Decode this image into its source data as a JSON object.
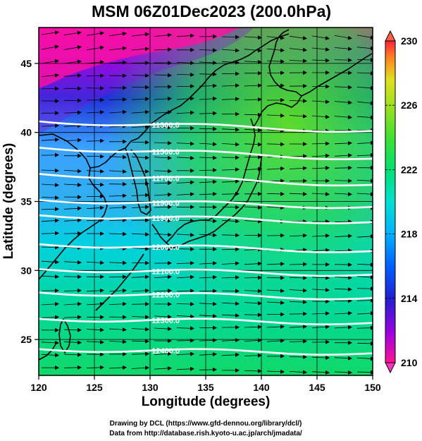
{
  "title": "MSM 06Z01Dec2023 (200.0hPa)",
  "xlabel": "Longitude (degrees)",
  "ylabel": "Latitude  (degrees)",
  "footer": {
    "line1": "Drawing by DCL (https://www.gfd-dennou.org/library/dcl/)",
    "line2": "Data from http://database.rish.kyoto-u.ac.jp/arch/jmadata/"
  },
  "map": {
    "lon_range": [
      120,
      150
    ],
    "lat_range": [
      22.4,
      47.6
    ],
    "x_ticks": [
      {
        "value": 120,
        "label": "120"
      },
      {
        "value": 125,
        "label": "125"
      },
      {
        "value": 130,
        "label": "130"
      },
      {
        "value": 135,
        "label": "135"
      },
      {
        "value": 140,
        "label": "140"
      },
      {
        "value": 145,
        "label": "145"
      },
      {
        "value": 150,
        "label": "150"
      }
    ],
    "y_ticks": [
      {
        "value": 25,
        "label": "25"
      },
      {
        "value": 30,
        "label": "30"
      },
      {
        "value": 35,
        "label": "35"
      },
      {
        "value": 40,
        "label": "40"
      },
      {
        "value": 45,
        "label": "45"
      }
    ],
    "contours": [
      {
        "label": "11300.0",
        "lat_west": 40.8,
        "lat_east": 40.1
      },
      {
        "label": "11500.0",
        "lat_west": 38.9,
        "lat_east": 38.1
      },
      {
        "label": "11700.0",
        "lat_west": 37.0,
        "lat_east": 36.2
      },
      {
        "label": "11900.0",
        "lat_west": 35.1,
        "lat_east": 34.6
      },
      {
        "label": "11900.0",
        "lat_west": 34.0,
        "lat_east": 33.5
      },
      {
        "label": "12000.0",
        "lat_west": 31.9,
        "lat_east": 31.4
      },
      {
        "label": "12100.0",
        "lat_west": 30.1,
        "lat_east": 29.7
      },
      {
        "label": "12200.0",
        "lat_west": 28.4,
        "lat_east": 28.0
      },
      {
        "label": "12300.0",
        "lat_west": 26.5,
        "lat_east": 26.2
      },
      {
        "label": "12400.0",
        "lat_west": 24.3,
        "lat_east": 24.0
      }
    ]
  },
  "colorbar": {
    "min": 210,
    "max": 230,
    "ticks": [
      {
        "value": 210,
        "label": "210"
      },
      {
        "value": 214,
        "label": "214"
      },
      {
        "value": 218,
        "label": "218"
      },
      {
        "value": 222,
        "label": "222"
      },
      {
        "value": 226,
        "label": "226"
      },
      {
        "value": 230,
        "label": "230"
      }
    ],
    "colors": [
      "#ff1493",
      "#a000e0",
      "#2020d0",
      "#0060ff",
      "#00b0ff",
      "#00e0d0",
      "#00e070",
      "#40e030",
      "#a0e020",
      "#e0e020",
      "#ff8020",
      "#ff2040"
    ]
  }
}
